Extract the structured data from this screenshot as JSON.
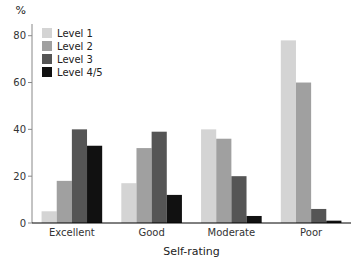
{
  "chart_data": {
    "type": "bar",
    "xlabel": "Self-rating",
    "ylabel": "%",
    "categories": [
      "Excellent",
      "Good",
      "Moderate",
      "Poor"
    ],
    "series": [
      {
        "name": "Level 1",
        "color": "#d4d4d4",
        "values": [
          5,
          17,
          40,
          78
        ]
      },
      {
        "name": "Level 2",
        "color": "#a0a0a0",
        "values": [
          18,
          32,
          36,
          60
        ]
      },
      {
        "name": "Level 3",
        "color": "#555555",
        "values": [
          40,
          39,
          20,
          6
        ]
      },
      {
        "name": "Level 4/5",
        "color": "#111111",
        "values": [
          33,
          12,
          3,
          1
        ]
      }
    ],
    "ylim": [
      0,
      85
    ],
    "yticks": [
      0,
      20,
      40,
      60,
      80
    ],
    "grid": false,
    "legend": "upper left"
  }
}
